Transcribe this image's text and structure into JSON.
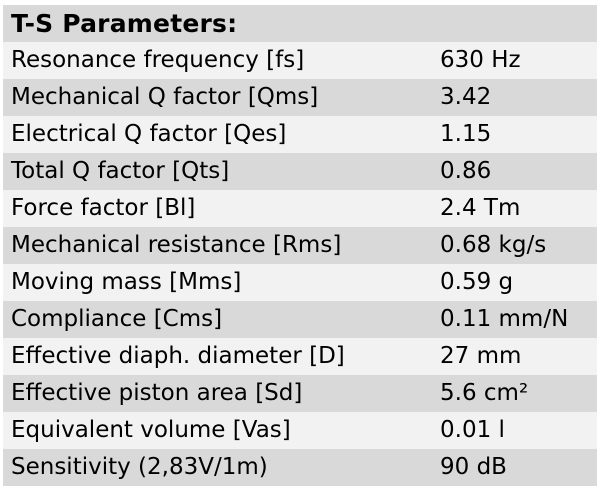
{
  "table": {
    "title": "T-S Parameters:",
    "rows": [
      {
        "label": "Resonance frequency [fs]",
        "value": "630 Hz"
      },
      {
        "label": "Mechanical Q factor [Qms]",
        "value": "3.42"
      },
      {
        "label": "Electrical Q factor [Qes]",
        "value": "1.15"
      },
      {
        "label": "Total Q factor [Qts]",
        "value": "0.86"
      },
      {
        "label": "Force factor [Bl]",
        "value": "2.4 Tm"
      },
      {
        "label": "Mechanical resistance [Rms]",
        "value": "0.68 kg/s"
      },
      {
        "label": "Moving mass [Mms]",
        "value": "0.59 g"
      },
      {
        "label": "Compliance [Cms]",
        "value": "0.11 mm/N"
      },
      {
        "label": "Effective diaph. diameter [D]",
        "value": "27 mm"
      },
      {
        "label": "Effective piston area [Sd]",
        "value": "5.6 cm²"
      },
      {
        "label": "Equivalent volume [Vas]",
        "value": "0.01 l"
      },
      {
        "label": "Sensitivity (2,83V/1m)",
        "value": "90 dB"
      }
    ]
  },
  "colors": {
    "stripe_gray": "#d9d9d9",
    "stripe_light": "#f2f2f2",
    "text": "#000000",
    "page_background": "#ffffff"
  }
}
